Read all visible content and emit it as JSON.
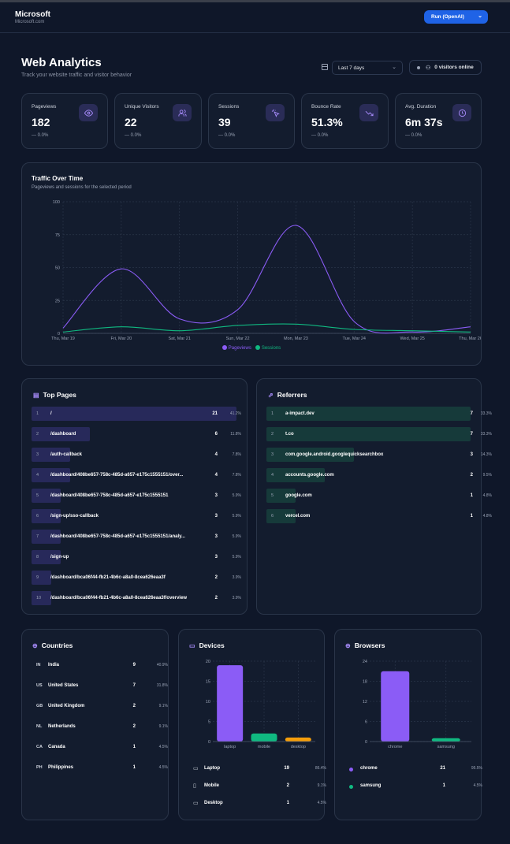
{
  "header": {
    "brand": "Microsoft",
    "brand_sub": "Microsoft.com",
    "run_button": "Run (OpenAI)"
  },
  "page": {
    "title": "Web Analytics",
    "subtitle": "Track your website traffic and visitor behavior",
    "range": "Last 7 days",
    "online": "0 visitors online"
  },
  "stats": [
    {
      "label": "Pageviews",
      "value": "182",
      "change": "0.0%",
      "icon": "eye-icon"
    },
    {
      "label": "Unique Visitors",
      "value": "22",
      "change": "0.0%",
      "icon": "users-icon"
    },
    {
      "label": "Sessions",
      "value": "39",
      "change": "0.0%",
      "icon": "pointer-click-icon"
    },
    {
      "label": "Bounce Rate",
      "value": "51.3%",
      "change": "0.0%",
      "icon": "trending-down-icon"
    },
    {
      "label": "Avg. Duration",
      "value": "6m 37s",
      "change": "0.0%",
      "icon": "clock-icon"
    }
  ],
  "traffic": {
    "title": "Traffic Over Time",
    "subtitle": "Pageviews and sessions for the selected period"
  },
  "chart_data": [
    {
      "type": "line",
      "x": [
        "Thu, Mar 19",
        "Fri, Mar 20",
        "Sat, Mar 21",
        "Sun, Mar 22",
        "Mon, Mar 23",
        "Tue, Mar 24",
        "Wed, Mar 25",
        "Thu, Mar 26"
      ],
      "series": [
        {
          "name": "Pageviews",
          "color": "#8b5cf6",
          "values": [
            4,
            49,
            11,
            18,
            82,
            9,
            1,
            5
          ]
        },
        {
          "name": "Sessions",
          "color": "#10b981",
          "values": [
            1,
            5,
            2,
            6,
            7,
            3,
            2,
            1
          ]
        }
      ],
      "ylim": [
        0,
        100
      ],
      "yticks": [
        0,
        25,
        50,
        75,
        100
      ],
      "grid": true,
      "legend": "bottom-center"
    },
    {
      "type": "bar",
      "title": "Devices",
      "categories": [
        "laptop",
        "mobile",
        "desktop"
      ],
      "values": [
        19,
        2,
        1
      ],
      "colors": [
        "#8b5cf6",
        "#10b981",
        "#f59e0b"
      ],
      "ylim": [
        0,
        20
      ],
      "yticks": [
        0,
        5,
        10,
        15,
        20
      ]
    },
    {
      "type": "bar",
      "title": "Browsers",
      "categories": [
        "chrome",
        "samsung"
      ],
      "values": [
        21,
        1
      ],
      "colors": [
        "#8b5cf6",
        "#10b981"
      ],
      "ylim": [
        0,
        24
      ],
      "yticks": [
        0,
        6,
        12,
        18,
        24
      ]
    }
  ],
  "top_pages": {
    "title": "Top Pages",
    "rows": [
      {
        "i": "1",
        "name": "/",
        "count": "21",
        "pct": "41.2%",
        "share": 1.0
      },
      {
        "i": "2",
        "name": "/dashboard",
        "count": "6",
        "pct": "11.8%",
        "share": 0.286
      },
      {
        "i": "3",
        "name": "/auth-callback",
        "count": "4",
        "pct": "7.8%",
        "share": 0.19
      },
      {
        "i": "4",
        "name": "/dashboard/408be657-758c-485d-a657-e175c1555151/over...",
        "count": "4",
        "pct": "7.8%",
        "share": 0.19
      },
      {
        "i": "5",
        "name": "/dashboard/408be657-758c-485d-a657-e175c1555151",
        "count": "3",
        "pct": "5.9%",
        "share": 0.143
      },
      {
        "i": "6",
        "name": "/sign-up/sso-callback",
        "count": "3",
        "pct": "5.9%",
        "share": 0.143
      },
      {
        "i": "7",
        "name": "/dashboard/408be657-758c-485d-a657-e175c1555151/analy...",
        "count": "3",
        "pct": "5.9%",
        "share": 0.143
      },
      {
        "i": "8",
        "name": "/sign-up",
        "count": "3",
        "pct": "5.9%",
        "share": 0.143
      },
      {
        "i": "9",
        "name": "/dashboard/bca06f44-fb21-4b6c-a8a0-8cea626eaa3f",
        "count": "2",
        "pct": "3.9%",
        "share": 0.095
      },
      {
        "i": "10",
        "name": "/dashboard/bca06f44-fb21-4b6c-a8a0-8cea626eaa3f/overview",
        "count": "2",
        "pct": "3.9%",
        "share": 0.095
      }
    ]
  },
  "referrers": {
    "title": "Referrers",
    "rows": [
      {
        "i": "1",
        "name": "a-impact.dev",
        "count": "7",
        "pct": "33.3%",
        "share": 1.0
      },
      {
        "i": "2",
        "name": "t.co",
        "count": "7",
        "pct": "33.3%",
        "share": 1.0
      },
      {
        "i": "3",
        "name": "com.google.android.googlequicksearchbox",
        "count": "3",
        "pct": "14.3%",
        "share": 0.43
      },
      {
        "i": "4",
        "name": "accounts.google.com",
        "count": "2",
        "pct": "9.5%",
        "share": 0.286
      },
      {
        "i": "5",
        "name": "google.com",
        "count": "1",
        "pct": "4.8%",
        "share": 0.143
      },
      {
        "i": "6",
        "name": "vercel.com",
        "count": "1",
        "pct": "4.8%",
        "share": 0.143
      }
    ]
  },
  "countries": {
    "title": "Countries",
    "rows": [
      {
        "code": "IN",
        "name": "India",
        "count": "9",
        "pct": "40.9%"
      },
      {
        "code": "US",
        "name": "United States",
        "count": "7",
        "pct": "31.8%"
      },
      {
        "code": "GB",
        "name": "United Kingdom",
        "count": "2",
        "pct": "9.1%"
      },
      {
        "code": "NL",
        "name": "Netherlands",
        "count": "2",
        "pct": "9.1%"
      },
      {
        "code": "CA",
        "name": "Canada",
        "count": "1",
        "pct": "4.5%"
      },
      {
        "code": "PH",
        "name": "Philippines",
        "count": "1",
        "pct": "4.5%"
      }
    ]
  },
  "devices": {
    "title": "Devices",
    "rows": [
      {
        "icon": "monitor-icon",
        "name": "Laptop",
        "count": "19",
        "pct": "86.4%"
      },
      {
        "icon": "smartphone-icon",
        "name": "Mobile",
        "count": "2",
        "pct": "9.1%"
      },
      {
        "icon": "desktop-icon",
        "name": "Desktop",
        "count": "1",
        "pct": "4.5%"
      }
    ]
  },
  "browsers": {
    "title": "Browsers",
    "rows": [
      {
        "color": "#8b5cf6",
        "name": "chrome",
        "count": "21",
        "pct": "95.5%"
      },
      {
        "color": "#10b981",
        "name": "samsung",
        "count": "1",
        "pct": "4.5%"
      }
    ]
  }
}
